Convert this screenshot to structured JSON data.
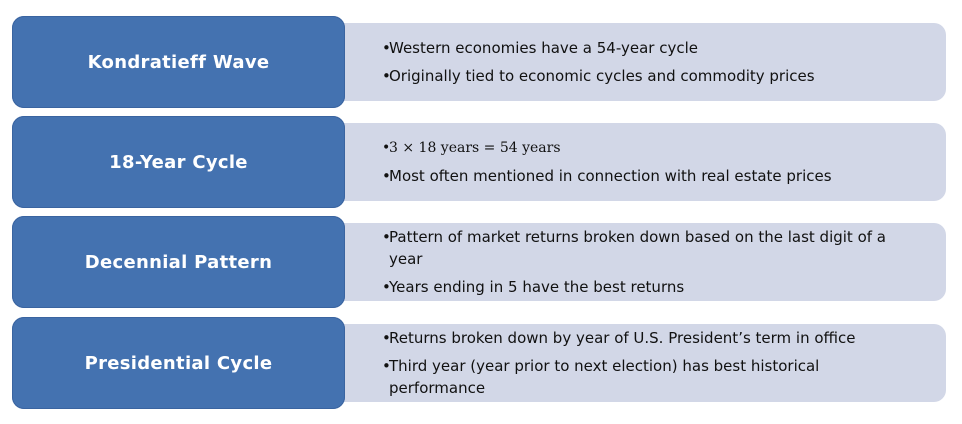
{
  "rows": [
    {
      "label": "Kondratieff Wave",
      "bullets": [
        "Western economies have a 54-year cycle",
        "Originally tied to economic cycles and commodity prices"
      ]
    },
    {
      "label": "18-Year Cycle",
      "bullets": [
        "3 × 18 years = 54 years",
        "Most often mentioned in connection with real estate prices"
      ]
    },
    {
      "label": "Decennial Pattern",
      "bullets": [
        "Pattern of market returns broken down based on the last digit of a year",
        "Years ending in 5 have the best returns"
      ]
    },
    {
      "label": "Presidential Cycle",
      "bullets": [
        "Returns broken down by year of U.S. President’s term in office",
        "Third year (year prior to next election) has best historical performance"
      ]
    }
  ],
  "colors": {
    "label_fill": "#4472b0",
    "detail_fill": "#d2d7e7",
    "label_text": "#ffffff"
  },
  "bullet_symbol": "•"
}
